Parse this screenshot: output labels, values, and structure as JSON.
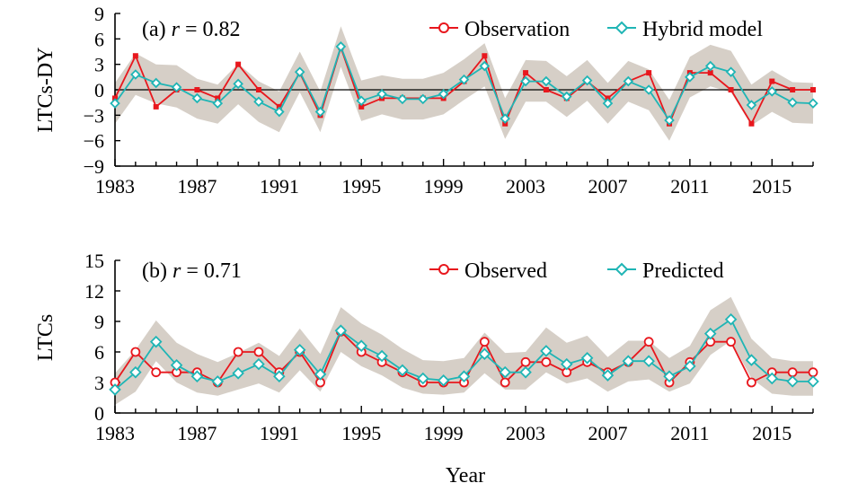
{
  "colors": {
    "observed": "#e8171d",
    "model": "#1fb5b5",
    "band": "#d6cfc7",
    "axis": "#000000"
  },
  "chart_data": [
    {
      "type": "line",
      "panel": "a",
      "annotation_prefix": "(a) ",
      "annotation_r": "r",
      "annotation_value": " = 0.82",
      "ylabel": "LTCs-DY",
      "xlabel": "",
      "ylim": [
        -9,
        9
      ],
      "yticks": [
        -9,
        -6,
        -3,
        0,
        3,
        6,
        9
      ],
      "ytick_labels": [
        "−9",
        "−6",
        "−3",
        "0",
        "3",
        "6",
        "9"
      ],
      "xlim": [
        1983,
        2017
      ],
      "xticks": [
        1983,
        1987,
        1991,
        1995,
        1999,
        2003,
        2007,
        2011,
        2015
      ],
      "xtick_labels": [
        "1983",
        "1987",
        "1991",
        "1995",
        "1999",
        "2003",
        "2007",
        "2011",
        "2015"
      ],
      "x": [
        1983,
        1984,
        1985,
        1986,
        1987,
        1988,
        1989,
        1990,
        1991,
        1992,
        1993,
        1994,
        1995,
        1996,
        1997,
        1998,
        1999,
        2000,
        2001,
        2002,
        2003,
        2004,
        2005,
        2006,
        2007,
        2008,
        2009,
        2010,
        2011,
        2012,
        2013,
        2014,
        2015,
        2016,
        2017
      ],
      "series": [
        {
          "name": "Observation",
          "marker": "circle",
          "values": [
            -1,
            4,
            -2,
            0,
            0,
            -1,
            3,
            0,
            -2,
            2,
            -3,
            5,
            -2,
            -1,
            -1,
            -1,
            -1,
            1,
            4,
            -4,
            2,
            0,
            -1,
            1,
            -1,
            1,
            2,
            -4,
            2,
            2,
            0,
            -4,
            1,
            0,
            0
          ]
        },
        {
          "name": "Hybrid model",
          "marker": "diamond",
          "values": [
            -1.6,
            1.8,
            0.8,
            0.3,
            -1.0,
            -1.6,
            0.7,
            -1.4,
            -2.6,
            2.1,
            -2.6,
            5.1,
            -1.3,
            -0.5,
            -1.1,
            -1.1,
            -0.5,
            1.2,
            2.8,
            -3.4,
            1.0,
            1.0,
            -0.8,
            1.1,
            -1.6,
            1.0,
            0.0,
            -3.6,
            1.5,
            2.8,
            2.1,
            -1.8,
            -0.2,
            -1.5,
            -1.6
          ]
        }
      ],
      "band": {
        "upper": [
          0.8,
          4.3,
          3.0,
          2.9,
          1.3,
          0.6,
          3.1,
          1.0,
          -0.2,
          4.5,
          -0.2,
          7.5,
          1.1,
          1.7,
          1.3,
          1.3,
          2.0,
          3.6,
          5.5,
          -1.0,
          3.5,
          3.4,
          1.6,
          3.5,
          0.8,
          3.4,
          2.4,
          -1.2,
          3.9,
          5.3,
          4.6,
          0.6,
          2.3,
          0.9,
          0.8
        ],
        "lower": [
          -4.0,
          -0.6,
          -1.6,
          -2.1,
          -3.4,
          -4.0,
          -1.7,
          -3.8,
          -5.0,
          -0.3,
          -5.0,
          2.7,
          -3.7,
          -2.9,
          -3.5,
          -3.5,
          -2.9,
          -1.2,
          0.4,
          -5.8,
          -1.4,
          -1.4,
          -3.2,
          -1.3,
          -4.0,
          -1.4,
          -2.4,
          -6.0,
          -0.9,
          0.4,
          -0.3,
          -4.2,
          -2.6,
          -3.9,
          -4.0
        ]
      }
    },
    {
      "type": "line",
      "panel": "b",
      "annotation_prefix": "(b) ",
      "annotation_r": "r",
      "annotation_value": " = 0.71",
      "ylabel": "LTCs",
      "xlabel": "Year",
      "ylim": [
        0,
        15
      ],
      "yticks": [
        0,
        3,
        6,
        9,
        12,
        15
      ],
      "ytick_labels": [
        "0",
        "3",
        "6",
        "9",
        "12",
        "15"
      ],
      "xlim": [
        1983,
        2017
      ],
      "xticks": [
        1983,
        1987,
        1991,
        1995,
        1999,
        2003,
        2007,
        2011,
        2015
      ],
      "xtick_labels": [
        "1983",
        "1987",
        "1991",
        "1995",
        "1999",
        "2003",
        "2007",
        "2011",
        "2015"
      ],
      "x": [
        1983,
        1984,
        1985,
        1986,
        1987,
        1988,
        1989,
        1990,
        1991,
        1992,
        1993,
        1994,
        1995,
        1996,
        1997,
        1998,
        1999,
        2000,
        2001,
        2002,
        2003,
        2004,
        2005,
        2006,
        2007,
        2008,
        2009,
        2010,
        2011,
        2012,
        2013,
        2014,
        2015,
        2016,
        2017
      ],
      "series": [
        {
          "name": "Observed",
          "marker": "circle",
          "values": [
            3,
            6,
            4,
            4,
            4,
            3,
            6,
            6,
            4,
            6,
            3,
            8,
            6,
            5,
            4,
            3,
            3,
            3,
            7,
            3,
            5,
            5,
            4,
            5,
            4,
            5,
            7,
            3,
            5,
            7,
            7,
            3,
            4,
            4,
            4
          ]
        },
        {
          "name": "Predicted",
          "marker": "diamond",
          "values": [
            2.3,
            4.0,
            7.0,
            4.7,
            3.6,
            3.1,
            3.9,
            4.8,
            3.6,
            6.2,
            3.8,
            8.1,
            6.6,
            5.6,
            4.2,
            3.4,
            3.2,
            3.6,
            5.8,
            4.0,
            4.0,
            6.1,
            4.8,
            5.4,
            3.7,
            5.1,
            5.1,
            3.6,
            4.6,
            7.8,
            9.2,
            5.2,
            3.4,
            3.1,
            3.1
          ]
        }
      ],
      "band": {
        "upper": [
          3.9,
          6.2,
          9.1,
          6.9,
          5.8,
          5.0,
          5.9,
          6.9,
          5.6,
          8.3,
          5.8,
          10.4,
          8.8,
          7.7,
          6.3,
          5.2,
          5.1,
          5.4,
          7.9,
          5.9,
          6.0,
          8.4,
          6.9,
          7.6,
          5.5,
          7.1,
          7.1,
          5.4,
          6.6,
          10.1,
          11.4,
          7.3,
          5.4,
          5.1,
          5.1
        ],
        "lower": [
          0.8,
          2.1,
          5.1,
          3.0,
          2.0,
          1.7,
          2.3,
          2.9,
          2.0,
          4.2,
          2.1,
          6.0,
          4.6,
          3.7,
          2.5,
          1.9,
          1.8,
          2.0,
          3.9,
          2.3,
          2.3,
          4.0,
          2.9,
          3.4,
          2.1,
          3.1,
          3.3,
          2.1,
          2.9,
          5.7,
          7.1,
          3.4,
          1.9,
          1.7,
          1.7
        ]
      }
    }
  ]
}
